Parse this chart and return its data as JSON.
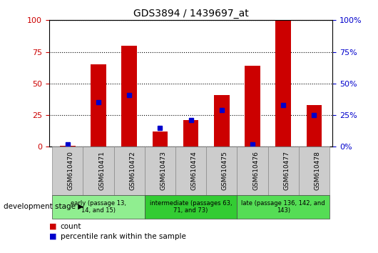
{
  "title": "GDS3894 / 1439697_at",
  "samples": [
    "GSM610470",
    "GSM610471",
    "GSM610472",
    "GSM610473",
    "GSM610474",
    "GSM610475",
    "GSM610476",
    "GSM610477",
    "GSM610478"
  ],
  "count_values": [
    1,
    65,
    80,
    12,
    21,
    41,
    64,
    100,
    33
  ],
  "percentile_values": [
    2,
    35,
    41,
    15,
    21,
    29,
    2,
    33,
    25
  ],
  "groups": [
    {
      "label": "early (passage 13,\n14, and 15)",
      "start": 0,
      "end": 3,
      "color": "#90EE90"
    },
    {
      "label": "intermediate (passages 63,\n71, and 73)",
      "start": 3,
      "end": 6,
      "color": "#33CC33"
    },
    {
      "label": "late (passage 136, 142, and\n143)",
      "start": 6,
      "end": 9,
      "color": "#55DD55"
    }
  ],
  "bar_color": "#CC0000",
  "percentile_color": "#0000CC",
  "ylim": [
    0,
    100
  ],
  "yticks": [
    0,
    25,
    50,
    75,
    100
  ],
  "background_color": "#ffffff",
  "bar_width": 0.5,
  "tick_bg_color": "#CCCCCC",
  "dev_stage_label": "development stage",
  "legend_count": "count",
  "legend_pct": "percentile rank within the sample"
}
